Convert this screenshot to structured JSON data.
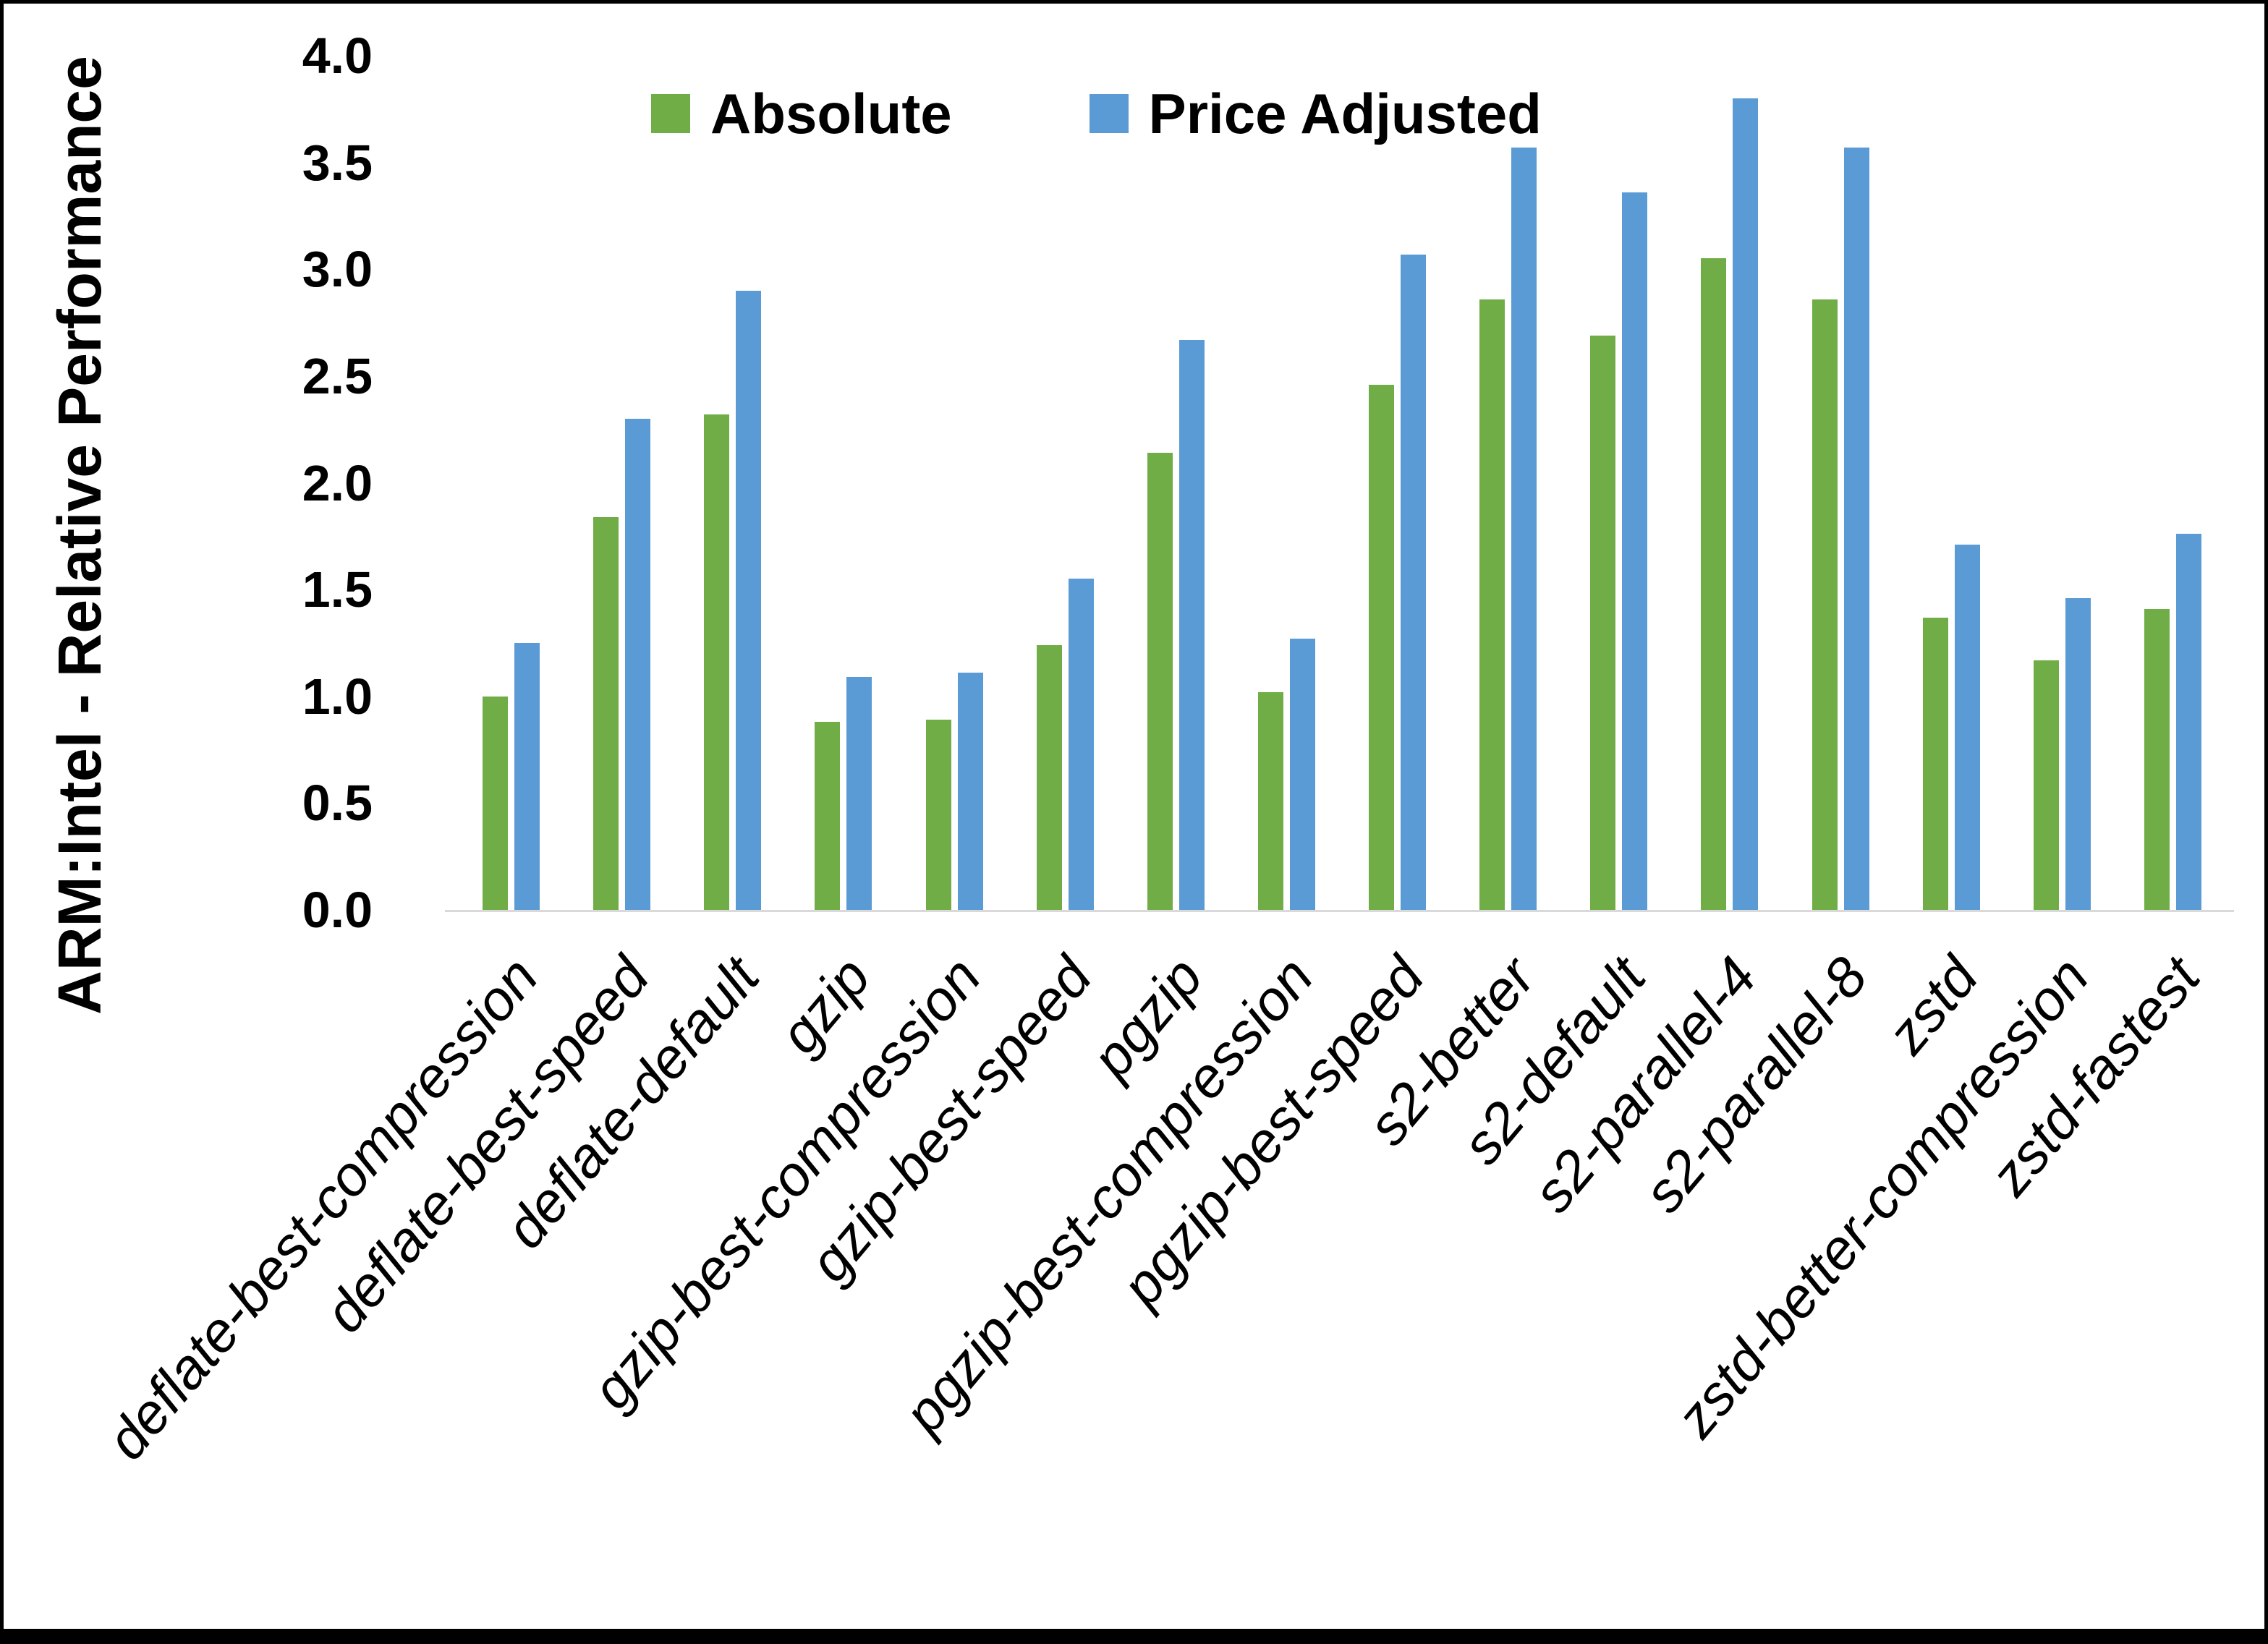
{
  "chart_data": {
    "type": "bar",
    "title": "",
    "xlabel": "",
    "ylabel": "ARM:Intel - Relative Performance",
    "ylim": [
      0.0,
      4.0
    ],
    "ytick_labels": [
      "0.0",
      "0.5",
      "1.0",
      "1.5",
      "2.0",
      "2.5",
      "3.0",
      "3.5",
      "4.0"
    ],
    "grid": false,
    "legend_position": "top-center",
    "categories": [
      "deflate-best-compression",
      "deflate-best-speed",
      "deflate-default",
      "gzip",
      "gzip-best-compression",
      "gzip-best-speed",
      "pgzip",
      "pgzip-best-compression",
      "pgzip-best-speed",
      "s2-better",
      "s2-default",
      "s2-parallel-4",
      "s2-parallel-8",
      "zstd",
      "zstd-better-compression",
      "zstd-fastest"
    ],
    "series": [
      {
        "name": "Absolute",
        "color": "#70AD47",
        "values": [
          1.0,
          1.84,
          2.32,
          0.88,
          0.89,
          1.24,
          2.14,
          1.02,
          2.46,
          2.86,
          2.69,
          3.05,
          2.86,
          1.37,
          1.17,
          1.41
        ]
      },
      {
        "name": "Price Adjusted",
        "color": "#5B9BD5",
        "values": [
          1.25,
          2.3,
          2.9,
          1.09,
          1.11,
          1.55,
          2.67,
          1.27,
          3.07,
          3.57,
          3.36,
          3.8,
          3.57,
          1.71,
          1.46,
          1.76
        ]
      }
    ]
  },
  "colors": {
    "background": "#FFFFFF",
    "text": "#000000",
    "axis_line": "#D9D9D9",
    "frame_border": "#000000"
  }
}
